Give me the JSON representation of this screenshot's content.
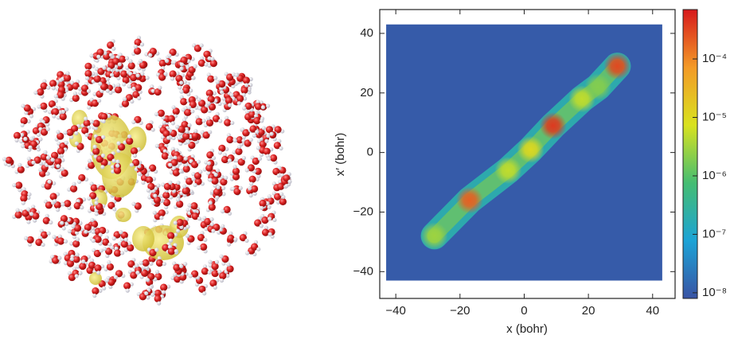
{
  "chart_data": {
    "type": "heatmap",
    "xlabel": "x (bohr)",
    "ylabel": "x′ (bohr)",
    "xlim": [
      -45,
      47
    ],
    "ylim": [
      -49,
      48
    ],
    "xticks": [
      {
        "value": -40,
        "label": "−40"
      },
      {
        "value": -20,
        "label": "−20"
      },
      0,
      20,
      40
    ],
    "yticks": [
      {
        "value": -40,
        "label": "−40"
      },
      {
        "value": -20,
        "label": "−20"
      },
      0,
      20,
      40
    ],
    "extent": [
      -43,
      43
    ],
    "background_value": 1e-08,
    "band_value": 2e-07,
    "peaks": [
      {
        "x": -28,
        "y": -28,
        "value": 3e-06
      },
      {
        "x": -17,
        "y": -16,
        "value": 0.0002
      },
      {
        "x": -5,
        "y": -6,
        "value": 5e-06
      },
      {
        "x": 2,
        "y": 1,
        "value": 1e-05
      },
      {
        "x": 9,
        "y": 9,
        "value": 0.0004
      },
      {
        "x": 18,
        "y": 18,
        "value": 5e-06
      },
      {
        "x": 23,
        "y": 22,
        "value": 2e-06
      },
      {
        "x": 29,
        "y": 29,
        "value": 0.0003
      }
    ],
    "colorbar": {
      "scale": "log",
      "lim": [
        8e-09,
        0.0007
      ],
      "ticks": [
        {
          "value": 1e-08,
          "label": "10⁻⁸"
        },
        {
          "value": 1e-07,
          "label": "10⁻⁷"
        },
        {
          "value": 1e-06,
          "label": "10⁻⁶"
        },
        {
          "value": 1e-05,
          "label": "10⁻⁵"
        },
        {
          "value": 0.0001,
          "label": "10⁻⁴"
        }
      ],
      "colors": [
        "#3953a4",
        "#1ca3d6",
        "#45bd72",
        "#d9e21f",
        "#f39a27",
        "#d7191c"
      ]
    }
  }
}
